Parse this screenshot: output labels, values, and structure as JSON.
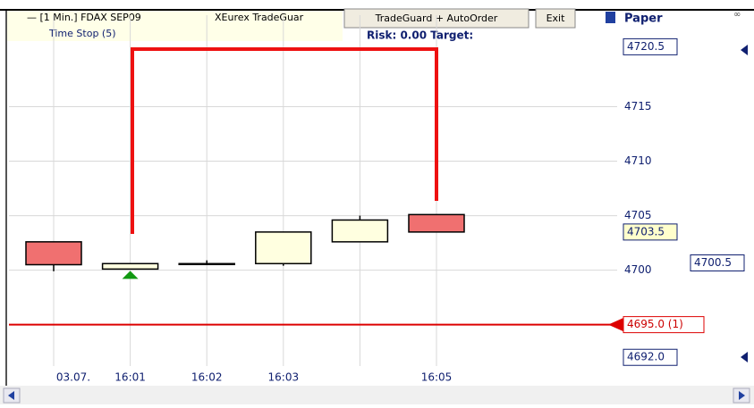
{
  "toolbar": {
    "instrument": "— [1 Min.] FDAX SEP09",
    "module": "XEurex TradeGuar",
    "button": "TradeGuard + AutoOrder",
    "exit": "Exit",
    "mode": "Paper",
    "time_stop": "Time Stop  (5)",
    "risk": "Risk:  0.00  Target:"
  },
  "chart_data": {
    "type": "candlestick",
    "categories": [
      "03.07.",
      "16:01",
      "16:02",
      "16:03",
      null,
      "16:05"
    ],
    "series": [
      {
        "up_color": "#ffffe0",
        "down_color": "#f07070",
        "open": [
          4702.6,
          4700.1,
          4700.6,
          4700.6,
          4702.6,
          4705.1
        ],
        "high": [
          4702.6,
          4700.6,
          4700.9,
          4703.5,
          4705.0,
          4705.1
        ],
        "low": [
          4699.9,
          4700.1,
          4700.5,
          4700.4,
          4702.6,
          4703.5
        ],
        "close": [
          4700.5,
          4700.6,
          4700.6,
          4703.5,
          4704.6,
          4703.5
        ]
      }
    ],
    "ylim": [
      4691.2,
      4723.4
    ],
    "yticks": [
      4700,
      4705,
      4710,
      4715
    ],
    "grid": true,
    "price_labels": [
      {
        "value": 4720.5,
        "label": "4720.5",
        "color": "#ffffff"
      },
      {
        "value": 4703.5,
        "label": "4703.5",
        "color": "#ffffcc"
      },
      {
        "value": 4695.0,
        "label": "4695.0 (1)",
        "color": "#ffffff"
      },
      {
        "value": 4692.0,
        "label": "4692.0",
        "color": "#ffffff"
      }
    ],
    "position_label": {
      "value": 4700.5,
      "label": "4700.5"
    }
  }
}
